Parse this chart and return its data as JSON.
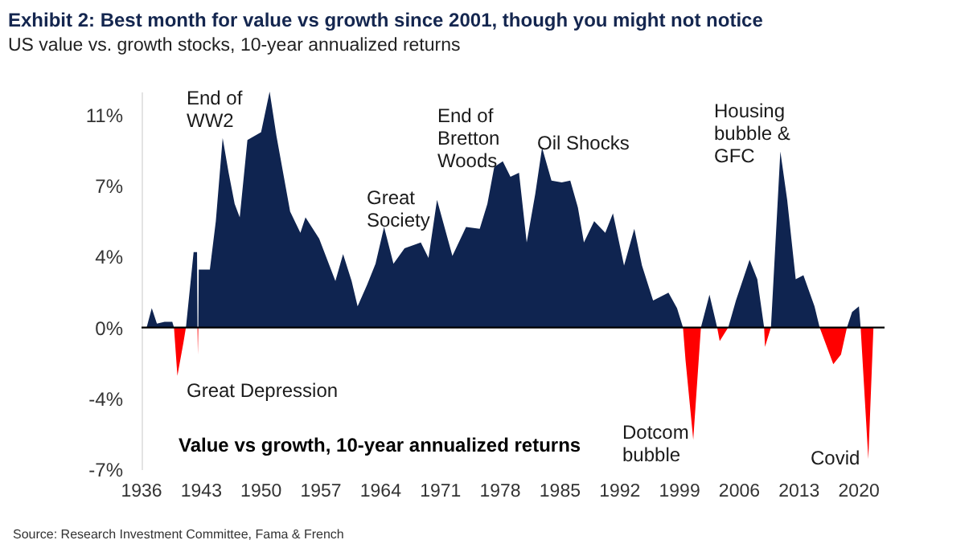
{
  "chart_data": {
    "type": "area",
    "title": "Exhibit 2: Best month for value vs growth since 2001, though you might not notice",
    "subtitle": "US value vs. growth stocks, 10-year annualized returns",
    "x": [
      1936.6,
      1937.2,
      1937.8,
      1938.7,
      1939.6,
      1939.8,
      1940.2,
      1940.9,
      1941.2,
      1942.1,
      1942.5,
      1942.55,
      1942.6,
      1942.65,
      1942.7,
      1943.1,
      1944.0,
      1944.7,
      1945.5,
      1946.2,
      1946.9,
      1947.5,
      1948.4,
      1950.0,
      1951.0,
      1951.8,
      1953.4,
      1954.6,
      1955.2,
      1956.8,
      1958.7,
      1959.6,
      1960.6,
      1961.3,
      1962.4,
      1963.4,
      1964.4,
      1965.5,
      1966.8,
      1968.7,
      1969.6,
      1970.6,
      1972.4,
      1974.0,
      1975.6,
      1976.5,
      1977.3,
      1978.3,
      1979.2,
      1980.2,
      1981.1,
      1982.1,
      1982.9,
      1984.0,
      1985.2,
      1986.2,
      1987.1,
      1987.8,
      1989.0,
      1990.3,
      1991.2,
      1992.5,
      1993.7,
      1994.6,
      1995.9,
      1997.7,
      1998.7,
      1999.4,
      1999.7,
      2000.6,
      2001.5,
      2002.5,
      2003.4,
      2003.7,
      2004.7,
      2005.6,
      2007.2,
      2008.1,
      2008.9,
      2009.0,
      2009.7,
      2010.8,
      2011.6,
      2012.6,
      2013.5,
      2014.8,
      2015.4,
      2017.0,
      2017.9,
      2018.6,
      2019.2,
      2020.0,
      2020.2,
      2021.1,
      2021.7
    ],
    "series": [
      {
        "color": "#0f2450",
        "values": [
          0,
          1.0,
          0.2,
          0.3,
          0.3,
          0,
          null,
          null,
          0,
          3.9,
          3.9,
          0,
          null,
          0,
          3.0,
          3.0,
          3.0,
          5.5,
          9.8,
          8.0,
          6.4,
          5.7,
          9.7,
          10.1,
          12.2,
          9.9,
          6.0,
          4.9,
          5.7,
          4.6,
          2.4,
          3.8,
          2.4,
          1.1,
          2.2,
          3.3,
          5.2,
          3.3,
          4.1,
          4.4,
          3.6,
          6.6,
          3.7,
          5.2,
          5.1,
          6.4,
          8.3,
          8.6,
          7.8,
          8.0,
          4.4,
          6.9,
          9.3,
          7.6,
          7.5,
          7.6,
          6.2,
          4.4,
          5.5,
          4.9,
          5.9,
          3.2,
          5.1,
          3.2,
          1.4,
          1.8,
          1.0,
          0,
          null,
          null,
          0,
          1.7,
          0,
          null,
          0,
          1.4,
          3.5,
          2.5,
          0,
          null,
          0,
          9.1,
          6.6,
          2.5,
          2.7,
          1.1,
          0,
          null,
          null,
          0,
          0.8,
          1.1,
          0,
          null,
          null
        ]
      },
      {
        "color": "#ff0000",
        "values": [
          null,
          null,
          null,
          null,
          null,
          0,
          -2.5,
          -0.8,
          0,
          null,
          null,
          0,
          -1.4,
          0,
          null,
          null,
          null,
          null,
          null,
          null,
          null,
          null,
          null,
          null,
          null,
          null,
          null,
          null,
          null,
          null,
          null,
          null,
          null,
          null,
          null,
          null,
          null,
          null,
          null,
          null,
          null,
          null,
          null,
          null,
          null,
          null,
          null,
          null,
          null,
          null,
          null,
          null,
          null,
          null,
          null,
          null,
          null,
          null,
          null,
          null,
          null,
          null,
          null,
          null,
          null,
          null,
          null,
          0,
          -1.7,
          -5.8,
          0,
          null,
          0,
          -0.7,
          0,
          null,
          null,
          null,
          0,
          -1.0,
          0,
          null,
          null,
          null,
          null,
          null,
          0,
          -1.9,
          -1.4,
          0,
          null,
          null,
          0,
          -6.8,
          0
        ]
      }
    ],
    "xlim": [
      1936,
      2023
    ],
    "xticks": [
      1936,
      1943,
      1950,
      1957,
      1964,
      1971,
      1978,
      1985,
      1992,
      1999,
      2006,
      2013,
      2020
    ],
    "ylim": [
      -7.33,
      12.2
    ],
    "yticks": [
      {
        "value": -7.33,
        "label": "-7%"
      },
      {
        "value": -3.67,
        "label": "-4%"
      },
      {
        "value": 0,
        "label": "0%"
      },
      {
        "value": 3.67,
        "label": "4%"
      },
      {
        "value": 7.33,
        "label": "7%"
      },
      {
        "value": 11,
        "label": "11%"
      }
    ],
    "ref_lines": [
      {
        "axis": "y",
        "value": 0,
        "color": "#000000"
      }
    ],
    "grid": false,
    "annotations": [
      "End of\nWW2",
      "Great Depression",
      "Great\nSociety",
      "End of\nBretton\nWoods",
      "Oil Shocks",
      "Housing\nbubble  &\nGFC",
      "Dotcom\nbubble",
      "Covid",
      "Value vs growth, 10-year  annualized returns",
      "Source: Research Investment Committee, Fama & French"
    ]
  }
}
